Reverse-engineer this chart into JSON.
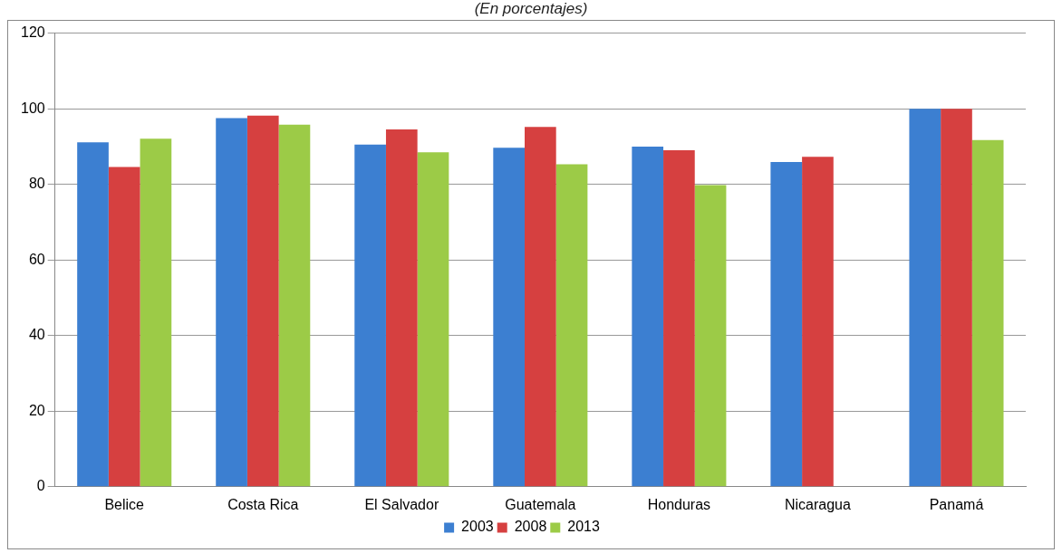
{
  "chart_data": {
    "type": "bar",
    "title": "(En porcentajes)",
    "categories": [
      "Belice",
      "Costa Rica",
      "El Salvador",
      "Guatemala",
      "Honduras",
      "Nicaragua",
      "Panamá"
    ],
    "series": [
      {
        "name": "2003",
        "color": "#3c7fd1",
        "values": [
          91.1,
          97.5,
          90.5,
          89.7,
          90.0,
          85.9,
          100
        ]
      },
      {
        "name": "2008",
        "color": "#d64040",
        "values": [
          84.6,
          98.2,
          94.5,
          95.2,
          89.0,
          87.3,
          100
        ]
      },
      {
        "name": "2013",
        "color": "#9ccb47",
        "values": [
          92.1,
          95.8,
          88.5,
          85.3,
          79.8,
          null,
          91.7
        ]
      }
    ],
    "ylim": [
      0,
      120
    ],
    "yticks": [
      0,
      20,
      40,
      60,
      80,
      100,
      120
    ],
    "grid": "y",
    "legend": "bottom"
  }
}
